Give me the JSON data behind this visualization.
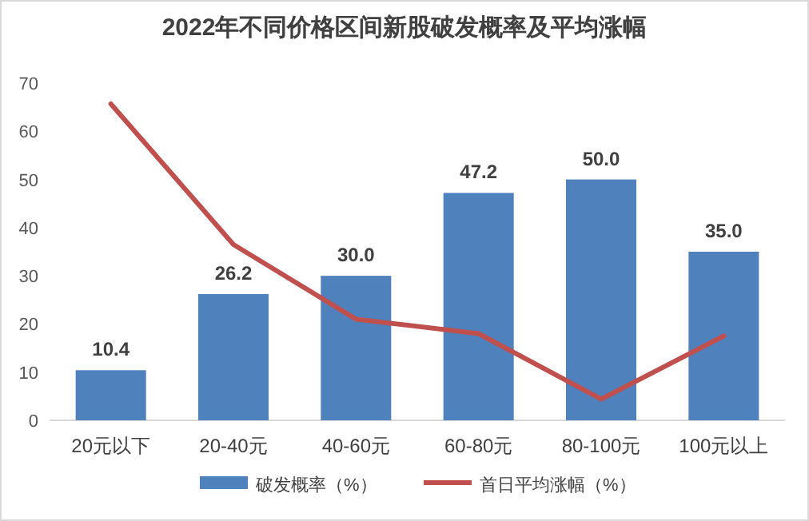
{
  "chart_data": {
    "type": "bar",
    "title": "2022年不同价格区间新股破发概率及平均涨幅",
    "categories": [
      "20元以下",
      "20-40元",
      "40-60元",
      "60-80元",
      "80-100元",
      "100元以上"
    ],
    "series": [
      {
        "name": "破发概率（%）",
        "color": "#4f81bd",
        "values": [
          10.4,
          26.2,
          30.0,
          47.2,
          50.0,
          35.0
        ],
        "value_labels": [
          "10.4",
          "26.2",
          "30.0",
          "47.2",
          "50.0",
          "35.0"
        ]
      },
      {
        "name": "首日平均涨幅（%）",
        "type": "line",
        "color": "#c0504d",
        "values": [
          65.7,
          36.5,
          21.0,
          18.0,
          4.4,
          17.5
        ]
      }
    ],
    "ylim": [
      0,
      70
    ],
    "yticks": [
      0,
      10,
      20,
      30,
      40,
      50,
      60,
      70
    ],
    "grid": false,
    "legend": "bottom",
    "marker": "none"
  }
}
